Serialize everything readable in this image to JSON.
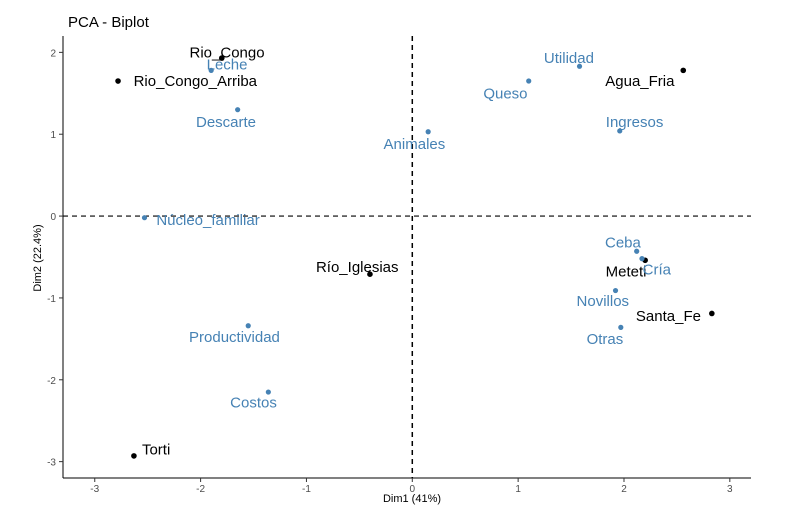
{
  "chart_data": {
    "type": "scatter",
    "title": "PCA - Biplot",
    "xlabel": "Dim1 (41%)",
    "ylabel": "Dim2 (22.4%)",
    "xlim": [
      -3.3,
      3.2
    ],
    "ylim": [
      -3.2,
      2.2
    ],
    "x_ticks": [
      -3,
      -2,
      -1,
      0,
      1,
      2,
      3
    ],
    "y_ticks": [
      -3,
      -2,
      -1,
      0,
      1,
      2
    ],
    "x_tick_labels": [
      "-3",
      "-2",
      "-1",
      "0",
      "1",
      "2",
      "3"
    ],
    "y_tick_labels": [
      "-3",
      "-2",
      "-1",
      "0",
      "1",
      "2"
    ],
    "grid": false,
    "reference_lines": [
      {
        "axis": "x",
        "value": 0,
        "style": "dashed"
      },
      {
        "axis": "y",
        "value": 0,
        "style": "dashed"
      }
    ],
    "colors": {
      "individuals": "#000000",
      "variables": "#4682b4"
    },
    "series": [
      {
        "points": [
          {
            "label": "Rio_Congo",
            "x": -1.8,
            "y": 1.93,
            "label_x": -1.75,
            "label_y": 2.0
          },
          {
            "label": "Rio_Congo_Arriba",
            "x": -2.78,
            "y": 1.65,
            "label_x": -2.05,
            "label_y": 1.65
          },
          {
            "label": "Agua_Fria",
            "x": 2.56,
            "y": 1.78,
            "label_x": 2.15,
            "label_y": 1.65
          },
          {
            "label": "Río_Iglesias",
            "x": -0.4,
            "y": -0.71,
            "label_x": -0.52,
            "label_y": -0.62
          },
          {
            "label": "Meteti",
            "x": 2.2,
            "y": -0.54,
            "label_x": 2.02,
            "label_y": -0.68
          },
          {
            "label": "Santa_Fe",
            "x": 2.83,
            "y": -1.19,
            "label_x": 2.42,
            "label_y": -1.22
          },
          {
            "label": "Torti",
            "x": -2.63,
            "y": -2.93,
            "label_x": -2.42,
            "label_y": -2.85
          }
        ]
      },
      {
        "points": [
          {
            "label": "Utilidad",
            "x": 1.58,
            "y": 1.83,
            "label_x": 1.48,
            "label_y": 1.93
          },
          {
            "label": "Leche",
            "x": -1.9,
            "y": 1.78,
            "label_x": -1.75,
            "label_y": 1.85
          },
          {
            "label": "Queso",
            "x": 1.1,
            "y": 1.65,
            "label_x": 0.88,
            "label_y": 1.5
          },
          {
            "label": "Descarte",
            "x": -1.65,
            "y": 1.3,
            "label_x": -1.76,
            "label_y": 1.15
          },
          {
            "label": "Ingresos",
            "x": 1.96,
            "y": 1.04,
            "label_x": 2.1,
            "label_y": 1.15
          },
          {
            "label": "Animales",
            "x": 0.15,
            "y": 1.03,
            "label_x": 0.02,
            "label_y": 0.88
          },
          {
            "label": "Núcleo_familiar",
            "x": -2.53,
            "y": -0.02,
            "label_x": -1.93,
            "label_y": -0.05
          },
          {
            "label": "Ceba",
            "x": 2.12,
            "y": -0.43,
            "label_x": 1.99,
            "label_y": -0.32
          },
          {
            "label": "Cría",
            "x": 2.17,
            "y": -0.52,
            "label_x": 2.31,
            "label_y": -0.65
          },
          {
            "label": "Novillos",
            "x": 1.92,
            "y": -0.91,
            "label_x": 1.8,
            "label_y": -1.04
          },
          {
            "label": "Otras",
            "x": 1.97,
            "y": -1.36,
            "label_x": 1.82,
            "label_y": -1.5
          },
          {
            "label": "Productividad",
            "x": -1.55,
            "y": -1.34,
            "label_x": -1.68,
            "label_y": -1.48
          },
          {
            "label": "Costos",
            "x": -1.36,
            "y": -2.15,
            "label_x": -1.5,
            "label_y": -2.28
          }
        ]
      }
    ]
  }
}
